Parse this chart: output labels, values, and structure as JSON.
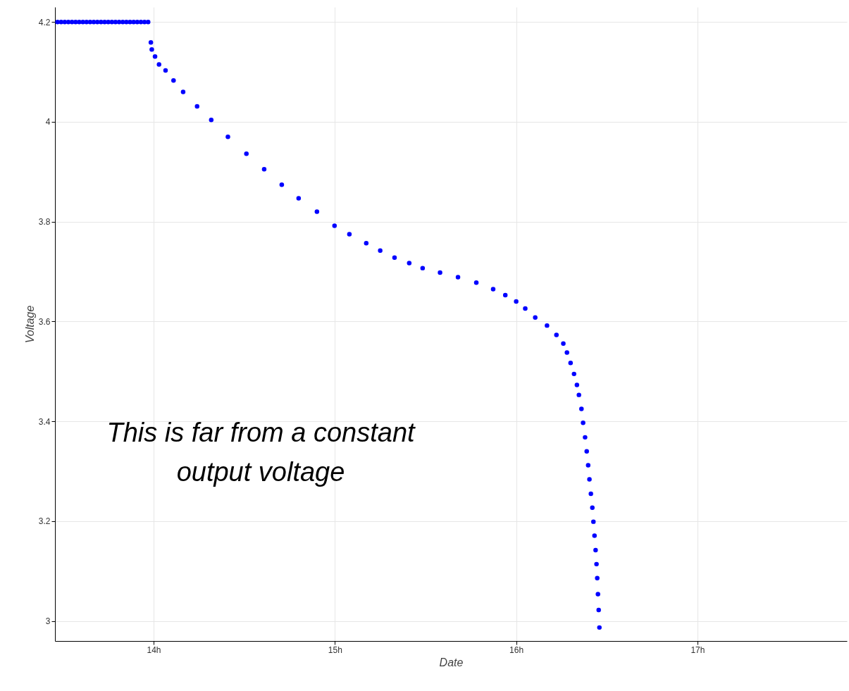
{
  "chart_data": {
    "type": "scatter",
    "xlabel": "Date",
    "ylabel": "Voltage",
    "annotations": [
      "This is far from a constant output voltage"
    ],
    "xlim": [
      13.456,
      17.824
    ],
    "ylim": [
      2.96,
      4.23
    ],
    "xticks": [
      {
        "value": 14,
        "label": "14h"
      },
      {
        "value": 15,
        "label": "15h"
      },
      {
        "value": 16,
        "label": "16h"
      },
      {
        "value": 17,
        "label": "17h"
      }
    ],
    "yticks": [
      3,
      3.2,
      3.4,
      3.6,
      3.8,
      4,
      4.2
    ],
    "grid": true,
    "marker": "circle",
    "series": [
      {
        "color": "#0000ff",
        "x": [
          13.47,
          13.49,
          13.51,
          13.53,
          13.55,
          13.57,
          13.59,
          13.61,
          13.63,
          13.65,
          13.67,
          13.69,
          13.71,
          13.73,
          13.75,
          13.77,
          13.79,
          13.81,
          13.83,
          13.85,
          13.87,
          13.89,
          13.91,
          13.93,
          13.95,
          13.97,
          13.985,
          13.99,
          14.008,
          14.03,
          14.066,
          14.11,
          14.163,
          14.24,
          14.318,
          14.41,
          14.512,
          14.61,
          14.707,
          14.8,
          14.901,
          14.998,
          15.08,
          15.173,
          15.25,
          15.329,
          15.41,
          15.484,
          15.58,
          15.679,
          15.78,
          15.873,
          15.94,
          16.0,
          16.05,
          16.105,
          16.17,
          16.222,
          16.26,
          16.28,
          16.3,
          16.319,
          16.335,
          16.346,
          16.36,
          16.369,
          16.38,
          16.389,
          16.397,
          16.404,
          16.412,
          16.42,
          16.426,
          16.432,
          16.438,
          16.443,
          16.447,
          16.451,
          16.455,
          16.459
        ],
        "values": [
          4.2,
          4.2,
          4.2,
          4.2,
          4.2,
          4.2,
          4.2,
          4.2,
          4.2,
          4.2,
          4.2,
          4.2,
          4.2,
          4.2,
          4.2,
          4.2,
          4.2,
          4.2,
          4.2,
          4.2,
          4.2,
          4.2,
          4.2,
          4.2,
          4.2,
          4.2,
          4.159,
          4.145,
          4.131,
          4.115,
          4.103,
          4.083,
          4.06,
          4.031,
          4.004,
          3.97,
          3.936,
          3.905,
          3.874,
          3.847,
          3.82,
          3.792,
          3.775,
          3.757,
          3.742,
          3.728,
          3.717,
          3.707,
          3.698,
          3.689,
          3.678,
          3.665,
          3.653,
          3.64,
          3.626,
          3.608,
          3.592,
          3.573,
          3.556,
          3.538,
          3.517,
          3.495,
          3.473,
          3.453,
          3.425,
          3.397,
          3.368,
          3.34,
          3.312,
          3.284,
          3.255,
          3.227,
          3.199,
          3.171,
          3.142,
          3.114,
          3.086,
          3.054,
          3.022,
          2.987
        ]
      }
    ]
  }
}
